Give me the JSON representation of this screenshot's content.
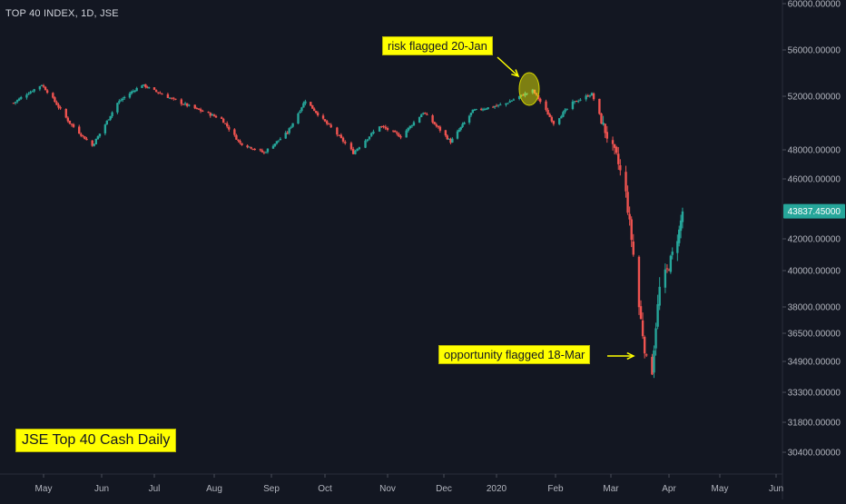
{
  "header": {
    "symbol_title": "TOP 40 INDEX, 1D, JSE"
  },
  "annotations": {
    "risk": "risk flagged 20-Jan",
    "opportunity": "opportunity flagged 18-Mar",
    "description": "JSE Top 40 Cash Daily"
  },
  "colors": {
    "background": "#131722",
    "up": "#26a69a",
    "down": "#ef5350",
    "axis_text": "#b2b5be",
    "highlight": "#ffff00",
    "price_label": "#26a69a"
  },
  "chart_data": {
    "type": "candlestick",
    "title": "TOP 40 INDEX, 1D, JSE",
    "y_ticks": [
      {
        "value": 60000,
        "label": "60000.00000"
      },
      {
        "value": 56000,
        "label": "56000.00000"
      },
      {
        "value": 52000,
        "label": "52000.00000"
      },
      {
        "value": 48000,
        "label": "48000.00000"
      },
      {
        "value": 46000,
        "label": "46000.00000"
      },
      {
        "value": 42000,
        "label": "42000.00000"
      },
      {
        "value": 40000,
        "label": "40000.00000"
      },
      {
        "value": 38000,
        "label": "38000.00000"
      },
      {
        "value": 36500,
        "label": "36500.00000"
      },
      {
        "value": 34900,
        "label": "34900.00000"
      },
      {
        "value": 33300,
        "label": "33300.00000"
      },
      {
        "value": 31800,
        "label": "31800.00000"
      },
      {
        "value": 30400,
        "label": "30400.00000"
      }
    ],
    "x_ticks": [
      {
        "date": "2019-05-01",
        "label": "May"
      },
      {
        "date": "2019-06-01",
        "label": "Jun"
      },
      {
        "date": "2019-07-01",
        "label": "Jul"
      },
      {
        "date": "2019-08-01",
        "label": "Aug"
      },
      {
        "date": "2019-09-01",
        "label": "Sep"
      },
      {
        "date": "2019-10-01",
        "label": "Oct"
      },
      {
        "date": "2019-11-01",
        "label": "Nov"
      },
      {
        "date": "2019-12-01",
        "label": "Dec"
      },
      {
        "date": "2020-01-01",
        "label": "2020"
      },
      {
        "date": "2020-02-01",
        "label": "Feb"
      },
      {
        "date": "2020-03-01",
        "label": "Mar"
      },
      {
        "date": "2020-04-01",
        "label": "Apr"
      },
      {
        "date": "2020-05-01",
        "label": "May"
      },
      {
        "date": "2020-06-01",
        "label": "Jun"
      }
    ],
    "last_price": {
      "value": 43837.45,
      "label": "43837.45000"
    },
    "series": [
      {
        "points": [
          {
            "date": "2019-04-15",
            "close": 51500
          },
          {
            "date": "2019-04-30",
            "close": 53000
          },
          {
            "date": "2019-05-15",
            "close": 50000
          },
          {
            "date": "2019-05-27",
            "close": 48300
          },
          {
            "date": "2019-06-10",
            "close": 51500
          },
          {
            "date": "2019-06-24",
            "close": 53000
          },
          {
            "date": "2019-07-10",
            "close": 51800
          },
          {
            "date": "2019-07-20",
            "close": 51200
          },
          {
            "date": "2019-08-05",
            "close": 50300
          },
          {
            "date": "2019-08-15",
            "close": 48500
          },
          {
            "date": "2019-08-28",
            "close": 47800
          },
          {
            "date": "2019-09-10",
            "close": 49300
          },
          {
            "date": "2019-09-20",
            "close": 51700
          },
          {
            "date": "2019-10-05",
            "close": 49500
          },
          {
            "date": "2019-10-15",
            "close": 47800
          },
          {
            "date": "2019-10-28",
            "close": 49800
          },
          {
            "date": "2019-11-08",
            "close": 49000
          },
          {
            "date": "2019-11-20",
            "close": 50800
          },
          {
            "date": "2019-12-05",
            "close": 48600
          },
          {
            "date": "2019-12-18",
            "close": 50900
          },
          {
            "date": "2020-01-05",
            "close": 51400
          },
          {
            "date": "2020-01-20",
            "close": 52500
          },
          {
            "date": "2020-01-31",
            "close": 50000
          },
          {
            "date": "2020-02-10",
            "close": 51500
          },
          {
            "date": "2020-02-20",
            "close": 52200
          },
          {
            "date": "2020-02-28",
            "close": 49000
          },
          {
            "date": "2020-03-04",
            "close": 47500
          },
          {
            "date": "2020-03-09",
            "close": 45000
          },
          {
            "date": "2020-03-12",
            "close": 42000
          },
          {
            "date": "2020-03-16",
            "close": 38000
          },
          {
            "date": "2020-03-18",
            "close": 36500
          },
          {
            "date": "2020-03-20",
            "close": 34900
          },
          {
            "date": "2020-03-23",
            "close": 34500
          },
          {
            "date": "2020-03-25",
            "close": 37000
          },
          {
            "date": "2020-03-27",
            "close": 39000
          },
          {
            "date": "2020-03-31",
            "close": 40000
          },
          {
            "date": "2020-04-03",
            "close": 41000
          },
          {
            "date": "2020-04-07",
            "close": 42500
          },
          {
            "date": "2020-04-09",
            "close": 43837
          }
        ]
      }
    ]
  }
}
